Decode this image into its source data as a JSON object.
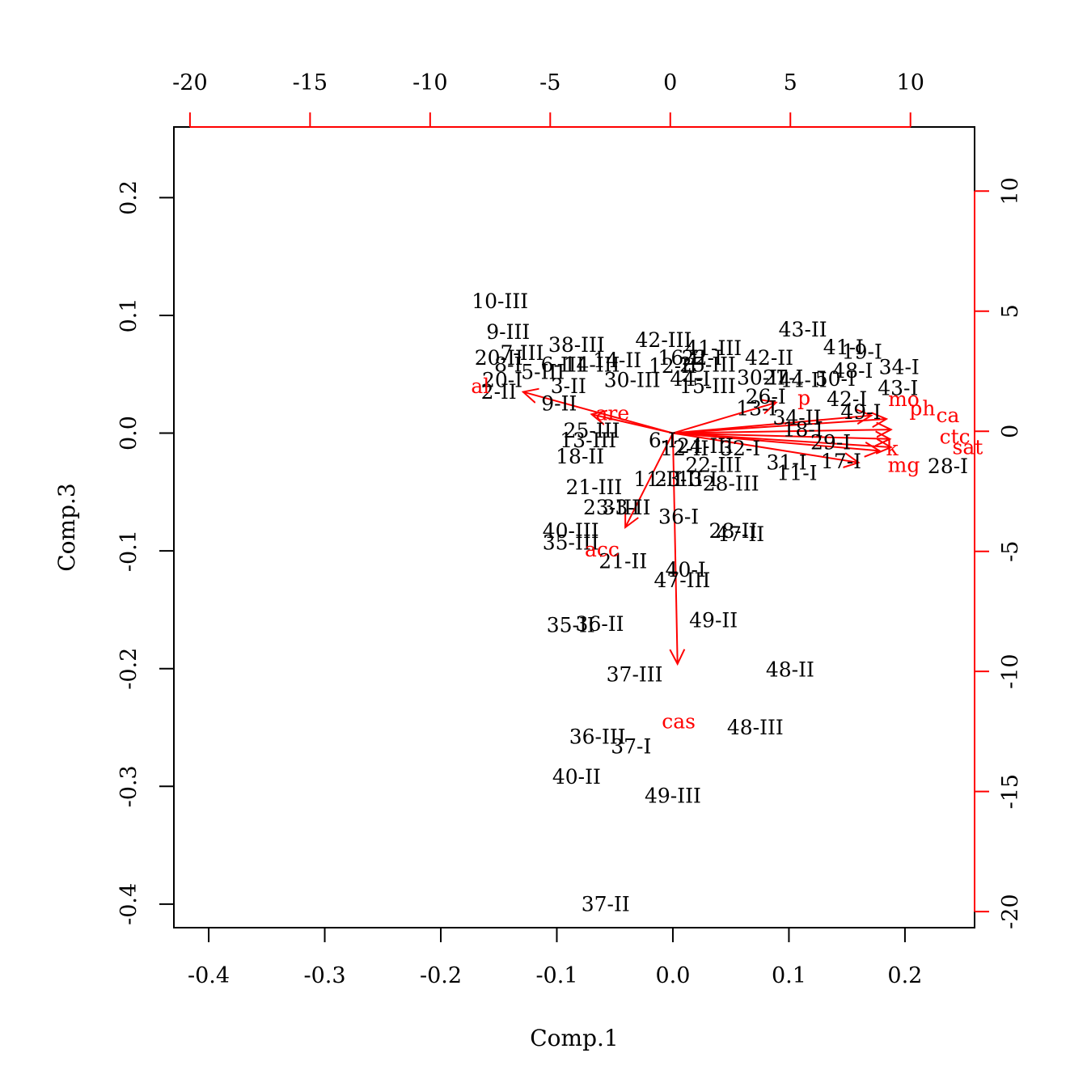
{
  "chart_data": {
    "type": "scatter",
    "subtype": "biplot",
    "title": "",
    "xlabel": "Comp.1",
    "ylabel": "Comp.3",
    "xlim": [
      -0.43,
      0.26
    ],
    "ylim": [
      -0.42,
      0.26
    ],
    "x_ticks": [
      "-0.4",
      "-0.3",
      "-0.2",
      "-0.1",
      "0.0",
      "0.1",
      "0.2"
    ],
    "y_ticks": [
      "-0.4",
      "-0.3",
      "-0.2",
      "-0.1",
      "0.0",
      "0.1",
      "0.2"
    ],
    "secondary_axes": {
      "color": "#ff0000",
      "top_ticks": [
        "-20",
        "-15",
        "-10",
        "-5",
        "0",
        "5",
        "10"
      ],
      "right_ticks": [
        "-20",
        "-15",
        "-10",
        "-5",
        "0",
        "5",
        "10"
      ],
      "scale_range": [
        -20.67,
        12.67
      ]
    },
    "observations": [
      {
        "label": "10-III",
        "x": -0.149,
        "y": 0.112
      },
      {
        "label": "9-III",
        "x": -0.142,
        "y": 0.086
      },
      {
        "label": "38-III",
        "x": -0.083,
        "y": 0.075
      },
      {
        "label": "7-III",
        "x": -0.13,
        "y": 0.068
      },
      {
        "label": "20-II",
        "x": -0.15,
        "y": 0.064
      },
      {
        "label": "8-I",
        "x": -0.142,
        "y": 0.058
      },
      {
        "label": "20-I",
        "x": -0.147,
        "y": 0.045
      },
      {
        "label": "2-II",
        "x": -0.15,
        "y": 0.035
      },
      {
        "label": "5-III",
        "x": -0.112,
        "y": 0.052
      },
      {
        "label": "6-III",
        "x": -0.095,
        "y": 0.058
      },
      {
        "label": "14-III",
        "x": -0.07,
        "y": 0.058
      },
      {
        "label": "3-II",
        "x": -0.09,
        "y": 0.04
      },
      {
        "label": "9-II",
        "x": -0.098,
        "y": 0.025
      },
      {
        "label": "30-III",
        "x": -0.035,
        "y": 0.045
      },
      {
        "label": "14-II",
        "x": -0.048,
        "y": 0.062
      },
      {
        "label": "42-III",
        "x": -0.008,
        "y": 0.079
      },
      {
        "label": "41-III",
        "x": 0.035,
        "y": 0.072
      },
      {
        "label": "16-II",
        "x": 0.008,
        "y": 0.064
      },
      {
        "label": "22-I",
        "x": 0.025,
        "y": 0.064
      },
      {
        "label": "12-II",
        "x": 0.0,
        "y": 0.057
      },
      {
        "label": "25-III",
        "x": 0.03,
        "y": 0.058
      },
      {
        "label": "42-II",
        "x": 0.083,
        "y": 0.064
      },
      {
        "label": "43-II",
        "x": 0.112,
        "y": 0.088
      },
      {
        "label": "41-I",
        "x": 0.147,
        "y": 0.073
      },
      {
        "label": "19-I",
        "x": 0.163,
        "y": 0.069
      },
      {
        "label": "34-I",
        "x": 0.195,
        "y": 0.056
      },
      {
        "label": "48-I",
        "x": 0.155,
        "y": 0.053
      },
      {
        "label": "43-I",
        "x": 0.194,
        "y": 0.038
      },
      {
        "label": "50-I",
        "x": 0.14,
        "y": 0.046
      },
      {
        "label": "30-II",
        "x": 0.076,
        "y": 0.047
      },
      {
        "label": "27-I",
        "x": 0.095,
        "y": 0.047
      },
      {
        "label": "44-II",
        "x": 0.112,
        "y": 0.045
      },
      {
        "label": "42-I",
        "x": 0.15,
        "y": 0.029
      },
      {
        "label": "26-I",
        "x": 0.08,
        "y": 0.031
      },
      {
        "label": "13-I",
        "x": 0.072,
        "y": 0.021
      },
      {
        "label": "49-I",
        "x": 0.162,
        "y": 0.018
      },
      {
        "label": "15-III",
        "x": 0.03,
        "y": 0.04
      },
      {
        "label": "44-I",
        "x": 0.015,
        "y": 0.046
      },
      {
        "label": "34-II",
        "x": 0.107,
        "y": 0.013
      },
      {
        "label": "18-I",
        "x": 0.112,
        "y": 0.003
      },
      {
        "label": "29-I",
        "x": 0.136,
        "y": -0.008
      },
      {
        "label": "17-I",
        "x": 0.145,
        "y": -0.024
      },
      {
        "label": "31-I",
        "x": 0.098,
        "y": -0.025
      },
      {
        "label": "11-I",
        "x": 0.107,
        "y": -0.034
      },
      {
        "label": "28-I",
        "x": 0.237,
        "y": -0.028
      },
      {
        "label": "25-III",
        "x": -0.07,
        "y": 0.002
      },
      {
        "label": "13-III",
        "x": -0.073,
        "y": -0.006
      },
      {
        "label": "6-I",
        "x": -0.009,
        "y": -0.006
      },
      {
        "label": "12-II",
        "x": 0.01,
        "y": -0.013
      },
      {
        "label": "24-III",
        "x": 0.028,
        "y": -0.011
      },
      {
        "label": "32-I",
        "x": 0.058,
        "y": -0.013
      },
      {
        "label": "18-II",
        "x": -0.08,
        "y": -0.02
      },
      {
        "label": "21-III",
        "x": -0.068,
        "y": -0.046
      },
      {
        "label": "22-III",
        "x": 0.035,
        "y": -0.027
      },
      {
        "label": "11-II",
        "x": -0.013,
        "y": -0.039
      },
      {
        "label": "23-II",
        "x": 0.005,
        "y": -0.039
      },
      {
        "label": "13-I",
        "x": 0.021,
        "y": -0.039
      },
      {
        "label": "28-III",
        "x": 0.05,
        "y": -0.043
      },
      {
        "label": "23-III",
        "x": -0.053,
        "y": -0.063
      },
      {
        "label": "33-II",
        "x": -0.04,
        "y": -0.063
      },
      {
        "label": "36-I",
        "x": 0.005,
        "y": -0.071
      },
      {
        "label": "40-III",
        "x": -0.088,
        "y": -0.083
      },
      {
        "label": "35-III",
        "x": -0.088,
        "y": -0.093
      },
      {
        "label": "28-II",
        "x": 0.052,
        "y": -0.083
      },
      {
        "label": "47-II",
        "x": 0.058,
        "y": -0.086
      },
      {
        "label": "21-II",
        "x": -0.043,
        "y": -0.109
      },
      {
        "label": "40-I",
        "x": 0.011,
        "y": -0.116
      },
      {
        "label": "47-III",
        "x": 0.008,
        "y": -0.125
      },
      {
        "label": "35-II",
        "x": -0.088,
        "y": -0.163
      },
      {
        "label": "36-II",
        "x": -0.063,
        "y": -0.162
      },
      {
        "label": "49-II",
        "x": 0.035,
        "y": -0.159
      },
      {
        "label": "37-III",
        "x": -0.033,
        "y": -0.205
      },
      {
        "label": "48-II",
        "x": 0.101,
        "y": -0.201
      },
      {
        "label": "36-III",
        "x": -0.065,
        "y": -0.258
      },
      {
        "label": "37-I",
        "x": -0.036,
        "y": -0.266
      },
      {
        "label": "48-III",
        "x": 0.071,
        "y": -0.25
      },
      {
        "label": "40-II",
        "x": -0.083,
        "y": -0.292
      },
      {
        "label": "49-III",
        "x": 0.0,
        "y": -0.308
      },
      {
        "label": "37-II",
        "x": -0.058,
        "y": -0.4
      }
    ],
    "variables": [
      {
        "label": "al",
        "end": [
          -0.129,
          0.035
        ],
        "label_pos": [
          -0.166,
          0.04
        ]
      },
      {
        "label": "are",
        "end": [
          -0.07,
          0.016
        ],
        "label_pos": [
          -0.052,
          0.017
        ]
      },
      {
        "label": "acc",
        "end": [
          -0.041,
          -0.08
        ],
        "label_pos": [
          -0.061,
          -0.099
        ]
      },
      {
        "label": "cas",
        "end": [
          0.004,
          -0.196
        ],
        "label_pos": [
          0.005,
          -0.245
        ]
      },
      {
        "label": "p",
        "end": [
          0.089,
          0.026
        ],
        "label_pos": [
          0.113,
          0.03
        ]
      },
      {
        "label": "mo",
        "end": [
          0.171,
          0.015
        ],
        "label_pos": [
          0.199,
          0.029
        ]
      },
      {
        "label": "ph",
        "end": [
          0.184,
          0.012
        ],
        "label_pos": [
          0.215,
          0.021
        ]
      },
      {
        "label": "ca",
        "end": [
          0.188,
          0.003
        ],
        "label_pos": [
          0.237,
          0.015
        ]
      },
      {
        "label": "ctc",
        "end": [
          0.187,
          -0.005
        ],
        "label_pos": [
          0.243,
          -0.003
        ]
      },
      {
        "label": "sat",
        "end": [
          0.188,
          -0.012
        ],
        "label_pos": [
          0.254,
          -0.012
        ]
      },
      {
        "label": "k",
        "end": [
          0.178,
          -0.015
        ],
        "label_pos": [
          0.189,
          -0.013
        ]
      },
      {
        "label": "mg",
        "end": [
          0.16,
          -0.025
        ],
        "label_pos": [
          0.199,
          -0.027
        ]
      }
    ]
  }
}
